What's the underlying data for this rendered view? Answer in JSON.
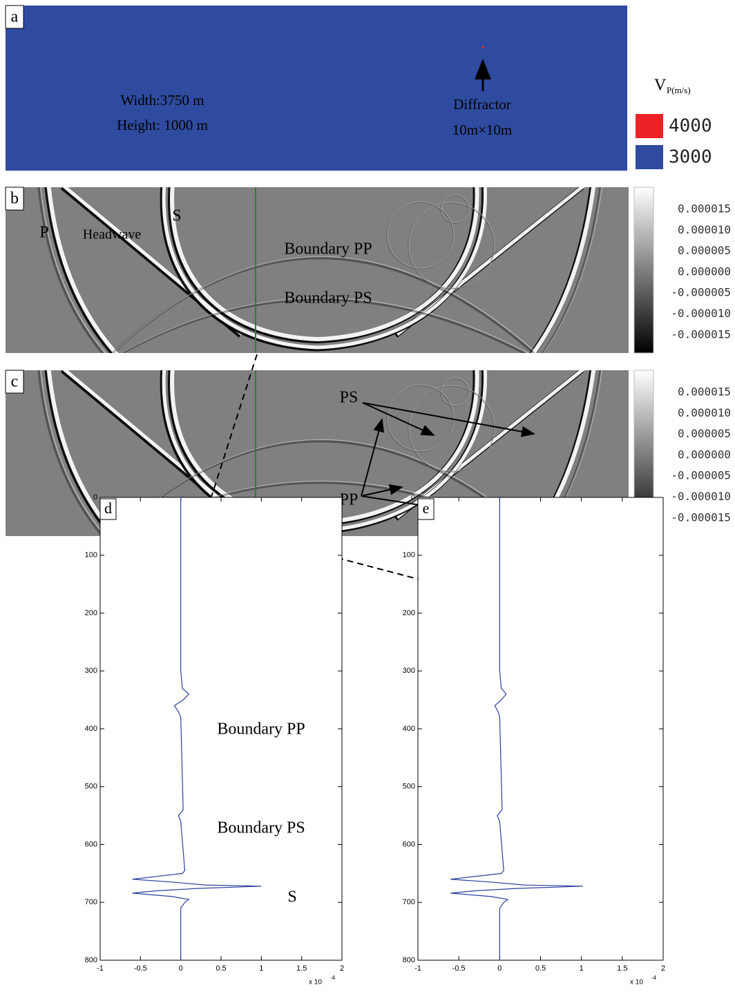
{
  "panels": {
    "a": {
      "label": "a",
      "annotations": [
        "Width:3750 m",
        "Height: 1000 m",
        "Diffractor",
        "10m×10m"
      ],
      "legend": {
        "title": "V",
        "subscript": "P(m/s)",
        "entries": [
          {
            "label": "4000",
            "color": "#ec2227"
          },
          {
            "label": "3000",
            "color": "#2f4b9f"
          }
        ]
      }
    },
    "b": {
      "label": "b",
      "annotations": [
        "P",
        "Headwave",
        "S",
        "Boundary PP",
        "Boundary PS"
      ],
      "colorbar": [
        "0.000015",
        "0.000010",
        "0.000005",
        "0.000000",
        "-0.000005",
        "-0.000010",
        "-0.000015"
      ]
    },
    "c": {
      "label": "c",
      "annotations": [
        "PS",
        "PP"
      ],
      "colorbar": [
        "0.000015",
        "0.000010",
        "0.000005",
        "0.000000",
        "-0.000005",
        "-0.000010",
        "-0.000015"
      ]
    }
  },
  "chart_data": [
    {
      "type": "line",
      "label": "d",
      "annotations": [
        "Boundary PP",
        "Boundary PS",
        "S"
      ],
      "xlim": [
        -1,
        2
      ],
      "xticks": [
        -1,
        -0.5,
        0,
        0.5,
        1,
        1.5,
        2
      ],
      "ylim": [
        0,
        800
      ],
      "yticks": [
        0,
        100,
        200,
        300,
        400,
        500,
        600,
        700,
        800
      ],
      "y_reversed": true,
      "x_multiplier": "x 10",
      "x_multiplier_exponent": "-4",
      "series": [
        {
          "color": "#2b3fa0",
          "depth": [
            0,
            90,
            150,
            300,
            330,
            340,
            350,
            360,
            370,
            380,
            540,
            550,
            560,
            645,
            650,
            660,
            665,
            670,
            672,
            676,
            680,
            684,
            690,
            695,
            700,
            710,
            800
          ],
          "values": [
            0,
            0,
            0,
            0,
            0.02,
            0.1,
            0.03,
            -0.08,
            -0.03,
            0,
            0.03,
            -0.03,
            0,
            0.05,
            0.02,
            -0.6,
            -0.1,
            0.3,
            1.0,
            0.2,
            -0.3,
            -0.6,
            -0.1,
            0.1,
            0.05,
            0,
            0
          ]
        }
      ]
    },
    {
      "type": "line",
      "label": "e",
      "annotations": [],
      "xlim": [
        -1,
        2
      ],
      "xticks": [
        -1,
        -0.5,
        0,
        0.5,
        1,
        1.5,
        2
      ],
      "ylim": [
        0,
        800
      ],
      "yticks": [
        0,
        100,
        200,
        300,
        400,
        500,
        600,
        700,
        800
      ],
      "y_reversed": true,
      "x_multiplier": "x 10",
      "x_multiplier_exponent": "-4",
      "series": [
        {
          "color": "#2b3fa0",
          "depth": [
            0,
            90,
            150,
            300,
            330,
            340,
            350,
            360,
            370,
            380,
            540,
            550,
            560,
            645,
            650,
            660,
            665,
            670,
            672,
            676,
            680,
            684,
            690,
            695,
            700,
            710,
            800
          ],
          "values": [
            0,
            0,
            0,
            0,
            0.02,
            0.08,
            0.02,
            -0.06,
            -0.02,
            0,
            0.03,
            -0.03,
            0,
            0.05,
            0.02,
            -0.6,
            -0.1,
            0.3,
            1.02,
            0.2,
            -0.3,
            -0.6,
            -0.1,
            0.1,
            0.05,
            0,
            0
          ]
        }
      ]
    }
  ]
}
